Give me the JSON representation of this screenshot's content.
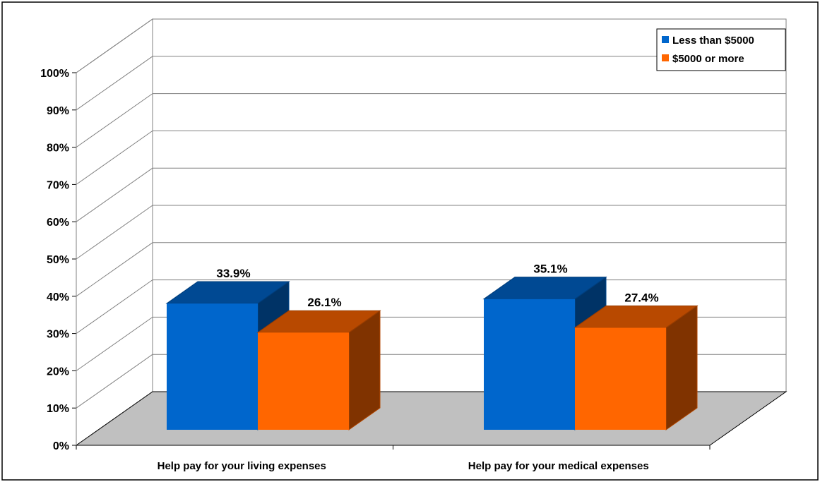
{
  "chart_data": {
    "type": "bar",
    "style": "3d-clustered-column",
    "categories": [
      "Help pay for your living expenses",
      "Help pay for your medical expenses"
    ],
    "series": [
      {
        "name": "Less than $5000",
        "values": [
          33.9,
          35.1
        ],
        "labels": [
          "33.9%",
          "35.1%"
        ],
        "color": "#0066CC"
      },
      {
        "name": "$5000 or more",
        "values": [
          26.1,
          27.4
        ],
        "labels": [
          "26.1%",
          "27.4%"
        ],
        "color": "#FF6600"
      }
    ],
    "y_ticks": [
      "0%",
      "10%",
      "20%",
      "30%",
      "40%",
      "50%",
      "60%",
      "70%",
      "80%",
      "90%",
      "100%"
    ],
    "ylim": [
      0,
      100
    ],
    "grid": true,
    "legend_position": "top-right",
    "floor_color": "#C0C0C0"
  }
}
